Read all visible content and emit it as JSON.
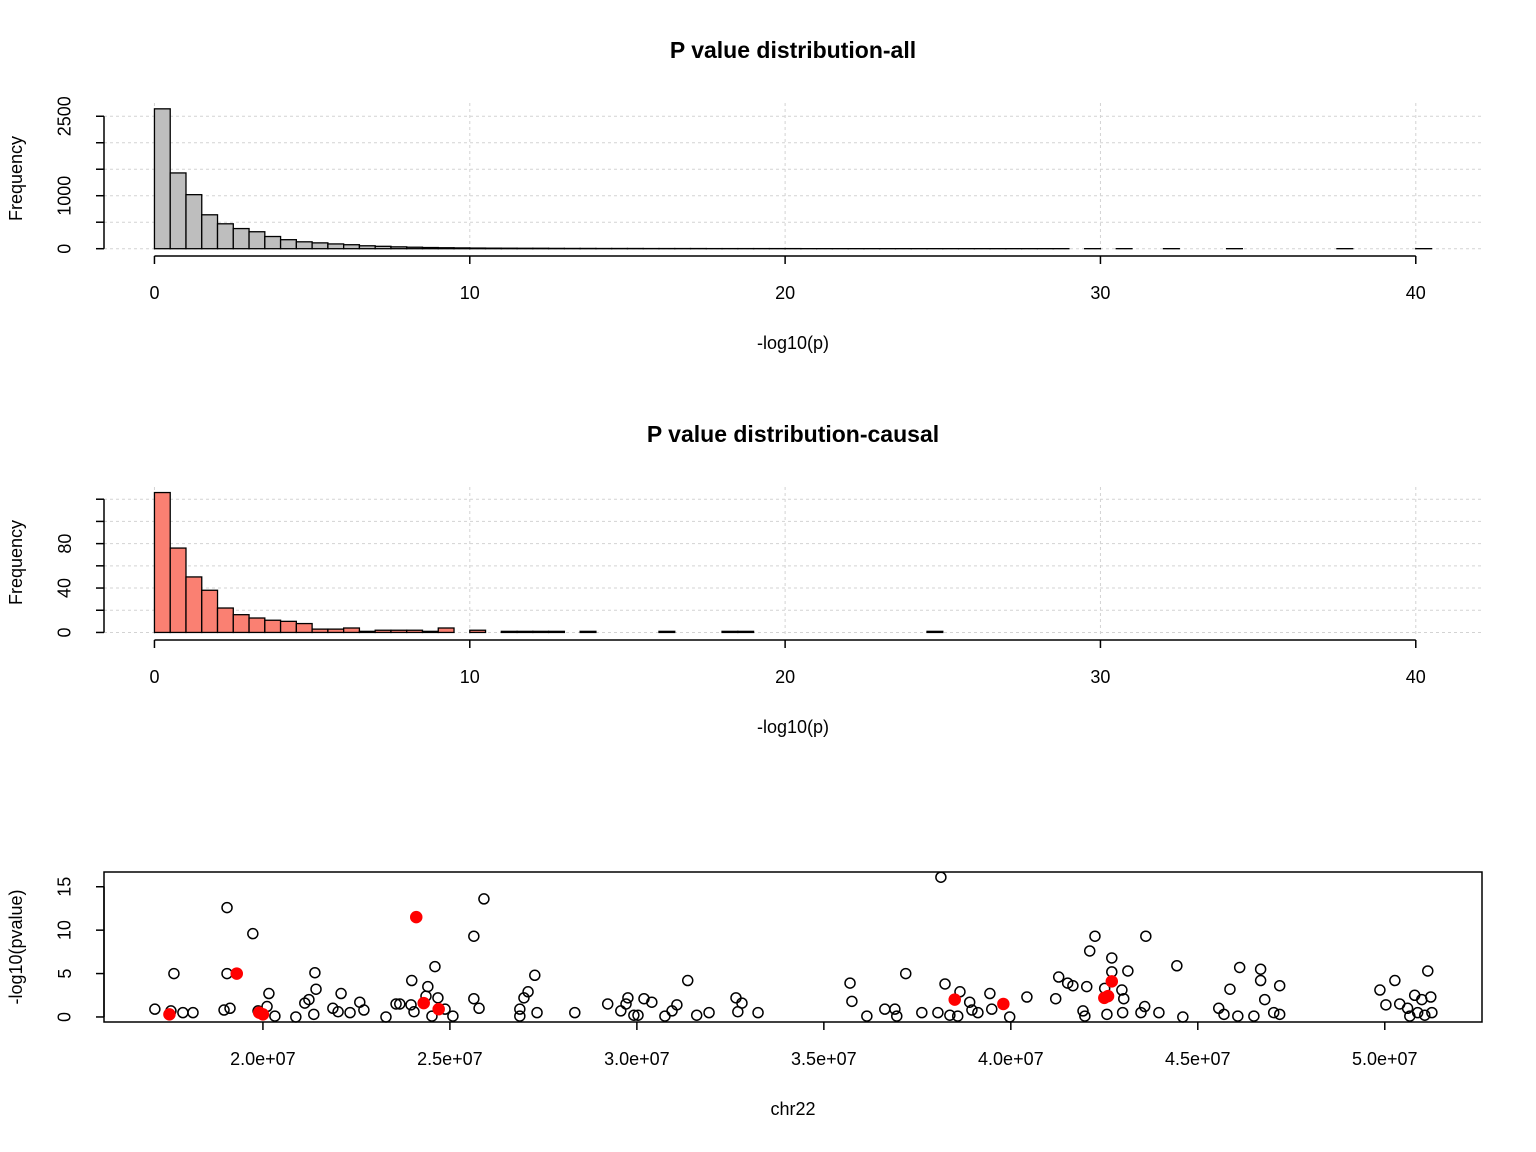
{
  "chart_data": [
    {
      "type": "histogram",
      "title": "P value distribution-all",
      "xlabel": "-log10(p)",
      "ylabel": "Frequency",
      "color": "#bebebe",
      "grid": true,
      "bins": [
        0,
        0.5,
        1,
        1.5,
        2,
        2.5,
        3,
        3.5,
        4,
        4.5,
        5,
        5.5,
        6,
        6.5,
        7,
        7.5,
        8,
        8.5,
        9,
        9.5,
        10,
        10.5,
        11,
        11.5,
        12,
        12.5,
        13,
        13.5,
        14,
        14.5,
        15,
        15.5,
        16,
        16.5,
        17,
        17.5,
        18,
        18.5,
        19,
        19.5,
        20,
        20.5,
        21,
        21.5,
        22,
        22.5,
        23,
        23.5,
        24,
        24.5,
        25,
        25.5,
        26,
        26.5,
        27,
        27.5,
        28,
        28.5,
        29,
        29.5,
        30,
        30.5,
        31,
        31.5,
        32,
        32.5,
        33,
        33.5,
        34,
        34.5,
        35,
        35.5,
        36,
        36.5,
        37,
        37.5,
        38,
        38.5,
        39,
        39.5,
        40,
        40.5
      ],
      "values": [
        2640,
        1430,
        1020,
        640,
        470,
        380,
        320,
        230,
        170,
        130,
        110,
        90,
        75,
        55,
        45,
        35,
        28,
        22,
        18,
        15,
        12,
        10,
        9,
        8,
        8,
        6,
        5,
        5,
        4,
        4,
        4,
        3,
        3,
        3,
        3,
        2,
        2,
        2,
        2,
        2,
        2,
        1,
        1,
        1,
        1,
        1,
        1,
        1,
        1,
        1,
        1,
        1,
        1,
        1,
        1,
        1,
        1,
        1,
        0,
        1,
        0,
        1,
        0,
        0,
        1,
        0,
        0,
        0,
        1,
        0,
        0,
        0,
        0,
        0,
        0,
        1,
        0,
        0,
        0,
        0,
        1
      ],
      "xlim": [
        -1.6,
        42.1
      ],
      "xticks": [
        0,
        10,
        20,
        30,
        40
      ],
      "ylim": [
        -100,
        2750
      ],
      "yticks": [
        0,
        1000,
        2500
      ],
      "yminor": [
        500,
        1500,
        2000
      ]
    },
    {
      "type": "histogram",
      "title": "P value distribution-causal",
      "xlabel": "-log10(p)",
      "ylabel": "Frequency",
      "color": "#fa8072",
      "grid": true,
      "bins": [
        0,
        0.5,
        1,
        1.5,
        2,
        2.5,
        3,
        3.5,
        4,
        4.5,
        5,
        5.5,
        6,
        6.5,
        7,
        7.5,
        8,
        8.5,
        9,
        9.5,
        10,
        10.5,
        11,
        11.5,
        12,
        12.5,
        13,
        13.5,
        14,
        14.5,
        15,
        15.5,
        16,
        16.5,
        17,
        17.5,
        18,
        18.5,
        19,
        19.5,
        20,
        20.5,
        21,
        21.5,
        22,
        22.5,
        23,
        23.5,
        24,
        24.5,
        25,
        25.5,
        26,
        26.5,
        27,
        27.5,
        28,
        28.5,
        29,
        29.5,
        30,
        30.5,
        31,
        31.5,
        32,
        32.5,
        33,
        33.5,
        34,
        34.5,
        35,
        35.5,
        36,
        36.5,
        37,
        37.5,
        38,
        38.5,
        39,
        39.5,
        40,
        40.5
      ],
      "values": [
        126,
        76,
        50,
        38,
        22,
        16,
        13,
        11,
        10,
        8,
        3,
        3,
        4,
        1,
        2,
        2,
        2,
        1,
        4,
        0,
        2,
        0,
        1,
        1,
        1,
        1,
        0,
        1,
        0,
        0,
        0,
        0,
        1,
        0,
        0,
        0,
        1,
        1,
        0,
        0,
        0,
        0,
        0,
        0,
        0,
        0,
        0,
        0,
        0,
        1,
        0,
        0,
        0,
        0,
        0,
        0,
        0,
        0,
        0,
        0,
        0,
        0,
        0,
        0,
        0,
        0,
        0,
        0,
        0,
        0,
        0,
        0,
        0,
        0,
        0,
        0,
        0,
        0,
        0,
        0,
        0
      ],
      "xlim": [
        -1.6,
        42.1
      ],
      "xticks": [
        0,
        10,
        20,
        30,
        40
      ],
      "ylim": [
        -5,
        131
      ],
      "yticks": [
        0,
        40,
        80
      ],
      "yminor": [
        20,
        60,
        100,
        120
      ]
    },
    {
      "type": "scatter",
      "xlabel": "chr22",
      "ylabel": "-log10(pvalue)",
      "grid": false,
      "xlim": [
        15750000,
        52600000
      ],
      "ylim": [
        -0.58,
        16.7
      ],
      "xticks": [
        {
          "value": 20000000,
          "label": "2.0e+07"
        },
        {
          "value": 25000000,
          "label": "2.5e+07"
        },
        {
          "value": 30000000,
          "label": "3.0e+07"
        },
        {
          "value": 35000000,
          "label": "3.5e+07"
        },
        {
          "value": 40000000,
          "label": "4.0e+07"
        },
        {
          "value": 45000000,
          "label": "4.5e+07"
        },
        {
          "value": 50000000,
          "label": "5.0e+07"
        }
      ],
      "yticks": [
        0,
        5,
        10,
        15
      ],
      "series": [
        {
          "color": "#000000",
          "marker": "open",
          "x": [
            17110000,
            17540000,
            17860000,
            18130000,
            19040000,
            19040000,
            17620000,
            18960000,
            19120000,
            19730000,
            19870000,
            20160000,
            20110000,
            20320000,
            20880000,
            21120000,
            21230000,
            21390000,
            21420000,
            21360000,
            21870000,
            22090000,
            22010000,
            22330000,
            22590000,
            22700000,
            23290000,
            23560000,
            23660000,
            23980000,
            23960000,
            24040000,
            24410000,
            24360000,
            24520000,
            24600000,
            24680000,
            24870000,
            25080000,
            25640000,
            25910000,
            25640000,
            25780000,
            26870000,
            26870000,
            26980000,
            27090000,
            27270000,
            27330000,
            28340000,
            29220000,
            29570000,
            29760000,
            29710000,
            29920000,
            30030000,
            30190000,
            30400000,
            30750000,
            30940000,
            31070000,
            31360000,
            31600000,
            31930000,
            32650000,
            32810000,
            32700000,
            33240000,
            35700000,
            35750000,
            36150000,
            36630000,
            36900000,
            36950000,
            37190000,
            37620000,
            38050000,
            38240000,
            38130000,
            38370000,
            38640000,
            38580000,
            38900000,
            38960000,
            39120000,
            39440000,
            39490000,
            39970000,
            40430000,
            41200000,
            41280000,
            41520000,
            41660000,
            41930000,
            42030000,
            41980000,
            42110000,
            42250000,
            42510000,
            42570000,
            42700000,
            42700000,
            42970000,
            43020000,
            43130000,
            42990000,
            43480000,
            43580000,
            43610000,
            43960000,
            44440000,
            44600000,
            45560000,
            45700000,
            45860000,
            46070000,
            46120000,
            46500000,
            46680000,
            46680000,
            46790000,
            47030000,
            47190000,
            47190000,
            49870000,
            50030000,
            50270000,
            50400000,
            50610000,
            50670000,
            50800000,
            50880000,
            50990000,
            51070000,
            51150000,
            51230000,
            51260000
          ],
          "values": [
            0.9,
            0.7,
            0.5,
            0.5,
            12.6,
            5.0,
            5.0,
            0.8,
            1.0,
            9.6,
            0.7,
            2.7,
            1.2,
            0.1,
            0.0,
            1.6,
            2.0,
            5.1,
            3.2,
            0.3,
            1.0,
            2.7,
            0.6,
            0.5,
            1.7,
            0.8,
            0.0,
            1.5,
            1.5,
            4.2,
            1.4,
            0.6,
            3.5,
            2.4,
            0.1,
            5.8,
            2.2,
            0.9,
            0.1,
            9.3,
            13.6,
            2.1,
            1.0,
            0.9,
            0.1,
            2.2,
            2.9,
            4.8,
            0.5,
            0.5,
            1.5,
            0.7,
            2.2,
            1.5,
            0.2,
            0.2,
            2.1,
            1.7,
            0.1,
            0.7,
            1.4,
            4.2,
            0.2,
            0.5,
            2.2,
            1.6,
            0.6,
            0.5,
            3.9,
            1.8,
            0.1,
            0.9,
            0.9,
            0.1,
            5.0,
            0.5,
            0.5,
            3.8,
            16.1,
            0.2,
            2.9,
            0.1,
            1.7,
            0.8,
            0.5,
            2.7,
            0.9,
            0.0,
            2.3,
            2.1,
            4.6,
            3.9,
            3.6,
            0.7,
            3.5,
            0.1,
            7.6,
            9.3,
            3.3,
            0.3,
            6.8,
            5.2,
            3.1,
            2.1,
            5.3,
            0.5,
            0.5,
            1.2,
            9.3,
            0.5,
            5.9,
            0.0,
            1.0,
            0.3,
            3.2,
            0.1,
            5.7,
            0.1,
            5.5,
            4.2,
            2.0,
            0.5,
            3.6,
            0.3,
            3.1,
            1.4,
            4.2,
            1.5,
            1.0,
            0.1,
            2.5,
            0.5,
            2.0,
            0.2,
            5.3,
            2.3,
            0.5
          ]
        },
        {
          "color": "#ff0000",
          "marker": "filled",
          "x": [
            17500000,
            19300000,
            19900000,
            20000000,
            24100000,
            24300000,
            24700000,
            38500000,
            39800000,
            42500000,
            42600000,
            42700000
          ],
          "values": [
            0.3,
            5.0,
            0.5,
            0.3,
            11.5,
            1.6,
            0.9,
            2.0,
            1.5,
            2.2,
            2.4,
            4.1
          ]
        }
      ]
    }
  ]
}
